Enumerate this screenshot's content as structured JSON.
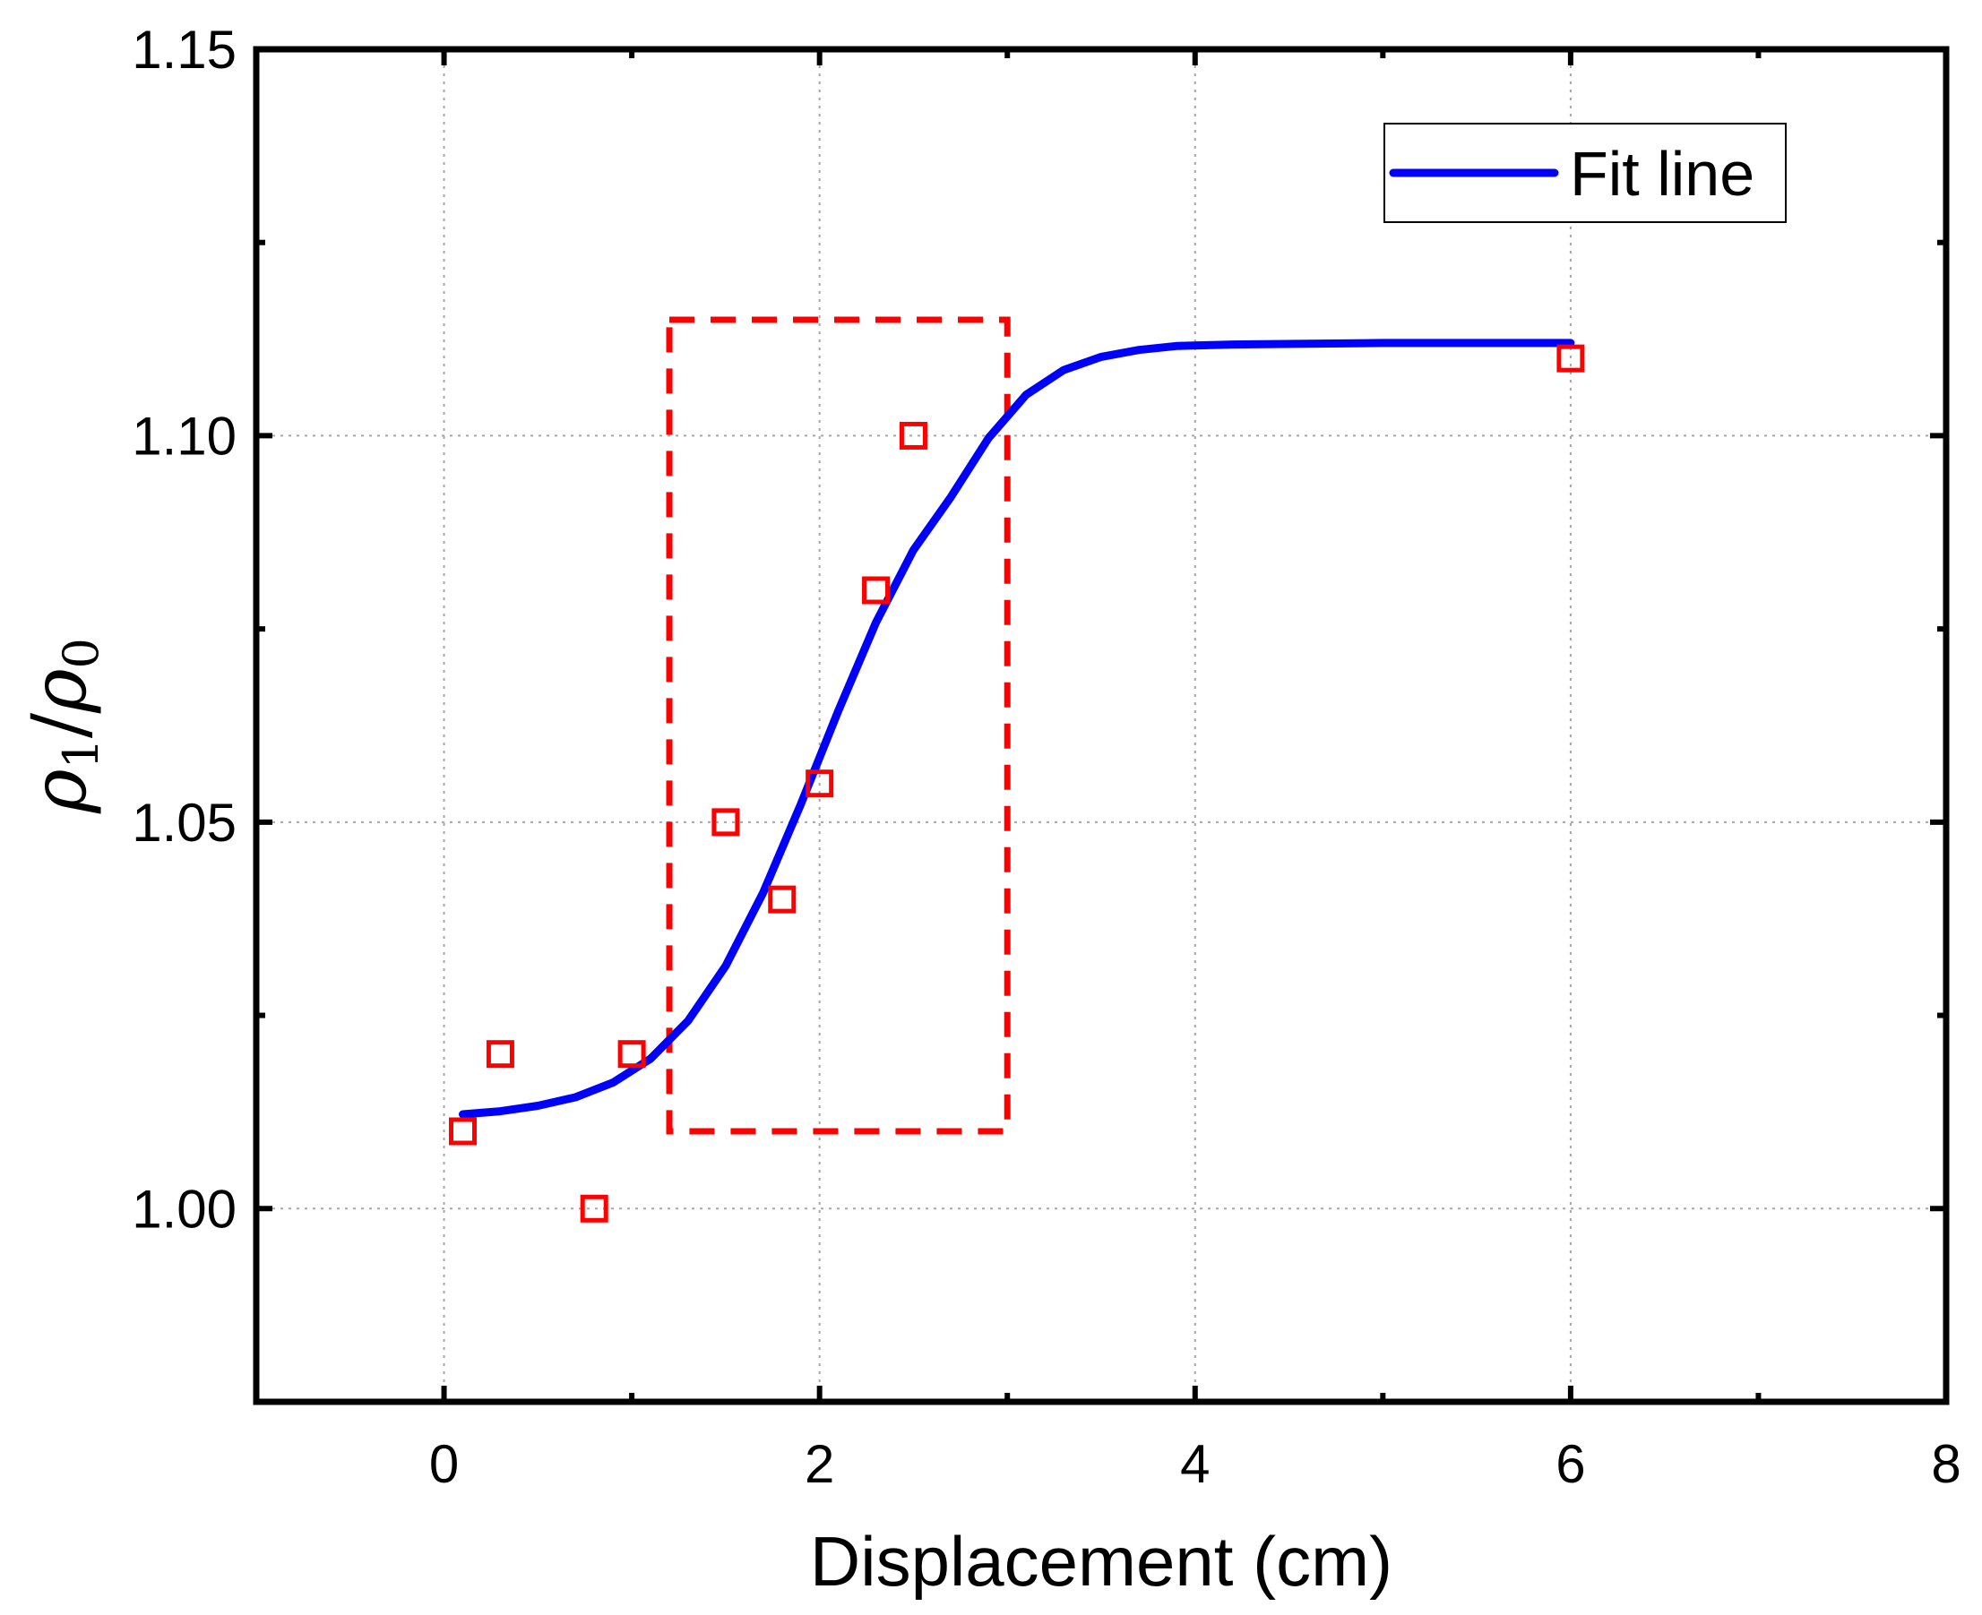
{
  "chart_data": {
    "type": "scatter",
    "title": "",
    "xlabel": "Displacement (cm)",
    "ylabel": {
      "symbol": "ρ",
      "numerator_sub": "1",
      "denominator_sub": "0"
    },
    "xlim": [
      -1,
      8
    ],
    "ylim": [
      0.975,
      1.15
    ],
    "x_ticks": [
      0,
      2,
      4,
      6,
      8
    ],
    "x_tick_labels": [
      "0",
      "2",
      "4",
      "6",
      "8"
    ],
    "y_ticks": [
      1.0,
      1.05,
      1.1,
      1.15
    ],
    "y_tick_labels": [
      "1.00",
      "1.05",
      "1.10",
      "1.15"
    ],
    "grid": true,
    "legend": {
      "position": "top-right",
      "entries": [
        {
          "label": "Fit line",
          "color": "#0000ff"
        }
      ]
    },
    "series": [
      {
        "kind": "scatter",
        "marker": "open-square",
        "color": "#ff0000",
        "points": [
          {
            "x": 0.1,
            "y": 1.01
          },
          {
            "x": 0.3,
            "y": 1.02
          },
          {
            "x": 0.8,
            "y": 1.0
          },
          {
            "x": 1.0,
            "y": 1.02
          },
          {
            "x": 1.5,
            "y": 1.05
          },
          {
            "x": 1.8,
            "y": 1.04
          },
          {
            "x": 2.0,
            "y": 1.055
          },
          {
            "x": 2.3,
            "y": 1.08
          },
          {
            "x": 2.5,
            "y": 1.1
          },
          {
            "x": 6.0,
            "y": 1.11
          }
        ]
      },
      {
        "name": "Fit line",
        "kind": "line",
        "color": "#0000ff",
        "points": [
          {
            "x": 0.1,
            "y": 1.0122
          },
          {
            "x": 0.3,
            "y": 1.0126
          },
          {
            "x": 0.5,
            "y": 1.0133
          },
          {
            "x": 0.7,
            "y": 1.0144
          },
          {
            "x": 0.9,
            "y": 1.0163
          },
          {
            "x": 1.1,
            "y": 1.0194
          },
          {
            "x": 1.3,
            "y": 1.0243
          },
          {
            "x": 1.5,
            "y": 1.0314
          },
          {
            "x": 1.7,
            "y": 1.0409
          },
          {
            "x": 1.9,
            "y": 1.0523
          },
          {
            "x": 2.1,
            "y": 1.0644
          },
          {
            "x": 2.3,
            "y": 1.0758
          },
          {
            "x": 2.5,
            "y": 1.0852
          },
          {
            "x": 2.7,
            "y": 1.0921
          },
          {
            "x": 2.9,
            "y": 1.0997
          },
          {
            "x": 3.1,
            "y": 1.1053
          },
          {
            "x": 3.3,
            "y": 1.1085
          },
          {
            "x": 3.5,
            "y": 1.1102
          },
          {
            "x": 3.7,
            "y": 1.1111
          },
          {
            "x": 3.9,
            "y": 1.1116
          },
          {
            "x": 4.2,
            "y": 1.1118
          },
          {
            "x": 4.6,
            "y": 1.1119
          },
          {
            "x": 5.0,
            "y": 1.112
          },
          {
            "x": 5.5,
            "y": 1.112
          },
          {
            "x": 6.0,
            "y": 1.112
          }
        ]
      }
    ],
    "annotations": [
      {
        "kind": "dashed-rectangle",
        "color": "#ff0000",
        "x_range": [
          1.2,
          3.0
        ],
        "y_range": [
          1.01,
          1.115
        ]
      }
    ]
  }
}
